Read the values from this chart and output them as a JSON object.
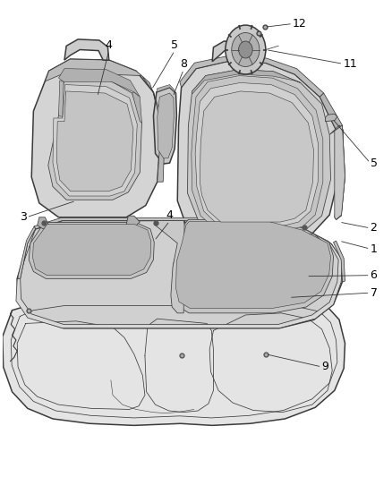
{
  "background_color": "#ffffff",
  "fig_width": 4.38,
  "fig_height": 5.33,
  "dpi": 100,
  "line_color": "#3a3a3a",
  "light_fill": "#d8d8d8",
  "mid_fill": "#c0c0c0",
  "dark_fill": "#a8a8a8",
  "label_fontsize": 9,
  "label_color": "#000000",
  "lw_main": 1.1,
  "lw_thin": 0.55,
  "lw_detail": 0.4,
  "labels": {
    "1": [
      0.92,
      0.475,
      0.76,
      0.49
    ],
    "2": [
      0.92,
      0.52,
      0.76,
      0.535
    ],
    "3": [
      0.065,
      0.545,
      0.19,
      0.58
    ],
    "4a": [
      0.3,
      0.895,
      0.245,
      0.8
    ],
    "4b": [
      0.44,
      0.535,
      0.365,
      0.495
    ],
    "5a": [
      0.46,
      0.895,
      0.385,
      0.815
    ],
    "5b": [
      0.95,
      0.66,
      0.87,
      0.705
    ],
    "6": [
      0.92,
      0.42,
      0.78,
      0.42
    ],
    "7": [
      0.92,
      0.385,
      0.73,
      0.375
    ],
    "8": [
      0.48,
      0.855,
      0.44,
      0.8
    ],
    "9": [
      0.84,
      0.23,
      0.675,
      0.255
    ],
    "11": [
      0.89,
      0.87,
      0.755,
      0.87
    ],
    "12": [
      0.77,
      0.95,
      0.685,
      0.915
    ]
  }
}
